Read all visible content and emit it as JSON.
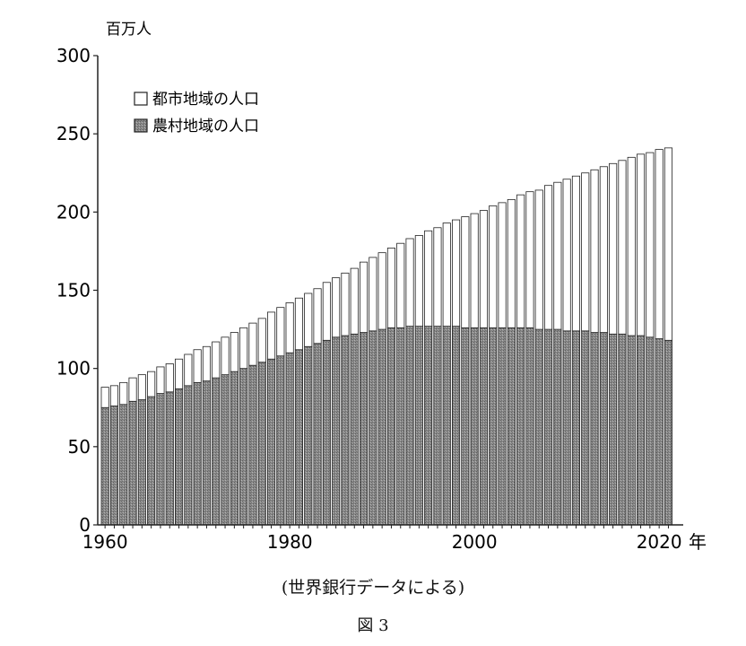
{
  "chart_data": {
    "type": "bar",
    "stacked": true,
    "y_unit_label": "百万人",
    "x_unit_label": "年",
    "ylim": [
      0,
      300
    ],
    "y_ticks": [
      0,
      50,
      100,
      150,
      200,
      250,
      300
    ],
    "x_tick_labels": [
      "1960",
      "1980",
      "2000",
      "2020"
    ],
    "x": [
      1960,
      1961,
      1962,
      1963,
      1964,
      1965,
      1966,
      1967,
      1968,
      1969,
      1970,
      1971,
      1972,
      1973,
      1974,
      1975,
      1976,
      1977,
      1978,
      1979,
      1980,
      1981,
      1982,
      1983,
      1984,
      1985,
      1986,
      1987,
      1988,
      1989,
      1990,
      1991,
      1992,
      1993,
      1994,
      1995,
      1996,
      1997,
      1998,
      1999,
      2000,
      2001,
      2002,
      2003,
      2004,
      2005,
      2006,
      2007,
      2008,
      2009,
      2010,
      2011,
      2012,
      2013,
      2014,
      2015,
      2016,
      2017,
      2018,
      2019,
      2020,
      2021
    ],
    "legend_position": "top-left",
    "series": [
      {
        "name": "農村地域の人口",
        "fill": "#8a8a8a",
        "values": [
          75,
          76,
          77,
          79,
          80,
          82,
          84,
          85,
          87,
          89,
          91,
          92,
          94,
          96,
          98,
          100,
          102,
          104,
          106,
          108,
          110,
          112,
          114,
          116,
          118,
          120,
          121,
          122,
          123,
          124,
          125,
          126,
          126,
          127,
          127,
          127,
          127,
          127,
          127,
          126,
          126,
          126,
          126,
          126,
          126,
          126,
          126,
          125,
          125,
          125,
          124,
          124,
          124,
          123,
          123,
          122,
          122,
          121,
          121,
          120,
          119,
          118
        ]
      },
      {
        "name": "都市地域の人口",
        "fill": "#ffffff",
        "values": [
          13,
          13,
          14,
          15,
          16,
          16,
          17,
          18,
          19,
          20,
          21,
          22,
          23,
          24,
          25,
          26,
          27,
          28,
          30,
          31,
          32,
          33,
          34,
          35,
          37,
          38,
          40,
          42,
          45,
          47,
          49,
          51,
          54,
          56,
          58,
          61,
          63,
          66,
          68,
          71,
          73,
          75,
          78,
          80,
          82,
          85,
          87,
          89,
          92,
          94,
          97,
          99,
          101,
          104,
          106,
          109,
          111,
          114,
          116,
          118,
          121,
          123
        ]
      }
    ]
  },
  "source_note": "(世界銀行データによる)",
  "figure_caption": "図 3"
}
